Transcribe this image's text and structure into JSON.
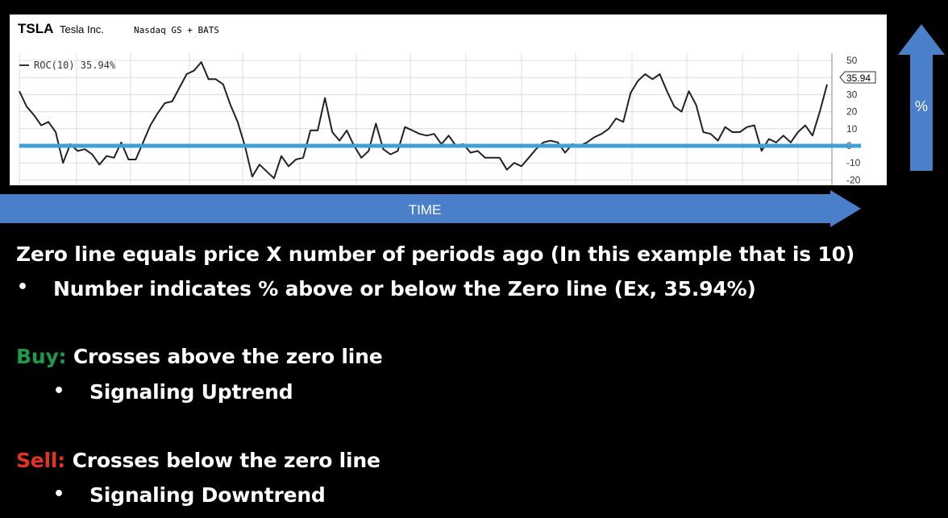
{
  "chart_header": {
    "ticker": "TSLA",
    "company": "Tesla Inc.",
    "exchange": "Nasdaq GS + BATS"
  },
  "legend": {
    "label": "ROC(10) 35.94%"
  },
  "chart_data": {
    "type": "line",
    "series": [
      {
        "name": "ROC(10)",
        "values": [
          32,
          23,
          18,
          12,
          14,
          8,
          -10,
          1,
          -3,
          -2,
          -5,
          -11,
          -6,
          -7,
          2,
          -8,
          -8,
          2,
          12,
          19,
          25,
          26,
          34,
          42,
          44,
          49,
          39,
          39,
          36,
          24,
          14,
          0,
          -18,
          -11,
          -15,
          -19,
          -6,
          -12,
          -8,
          -7,
          9,
          9,
          28,
          8,
          3,
          9,
          0,
          -7,
          -3,
          13,
          -2,
          -5,
          -3,
          11,
          9,
          7,
          6,
          7,
          1,
          6,
          0,
          1,
          -4,
          -3,
          -7,
          -7,
          -7,
          -14,
          -10,
          -12,
          -7,
          -2,
          2,
          3,
          2,
          -4,
          1,
          0,
          2,
          5,
          7,
          10,
          16,
          14,
          31,
          38,
          42,
          39,
          42,
          32,
          23,
          20,
          32,
          24,
          8,
          7,
          3,
          11,
          8,
          8,
          11,
          12,
          -3,
          4,
          2,
          6,
          2,
          8,
          12,
          6,
          20,
          36
        ]
      }
    ],
    "last_value_label": "35.94",
    "zero_line": 0,
    "y_ticks": [
      "50",
      "40",
      "30",
      "20",
      "10",
      "0",
      "-10",
      "-20"
    ],
    "ylim": [
      -22,
      52
    ],
    "grid": true,
    "colors": {
      "line": "#222222",
      "zero_line": "#3fa0d4",
      "grid": "#dcdcdc"
    }
  },
  "arrows": {
    "time_label": "TIME",
    "percent_label": "%",
    "color": "#4a7fc9"
  },
  "text": {
    "line1": "Zero line equals price X number of periods ago (In this example that is 10)",
    "bullet1": "Number indicates % above or below the Zero line (Ex, 35.94%)",
    "buy_label": "Buy:",
    "buy_text": " Crosses above the zero line",
    "buy_bullet": "Signaling Uptrend",
    "sell_label": "Sell:",
    "sell_text": " Crosses below the zero line",
    "sell_bullet": "Signaling Downtrend",
    "bullet_char": "•"
  },
  "colors": {
    "buy": "#1f9a4a",
    "sell": "#e53222",
    "background": "#000000",
    "text": "#ffffff"
  }
}
